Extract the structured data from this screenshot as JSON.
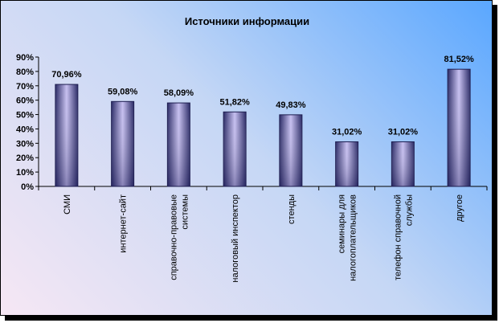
{
  "chart_data": {
    "type": "bar",
    "title": "Источники информации",
    "categories": [
      [
        "СМИ"
      ],
      [
        "интернет-сайт"
      ],
      [
        "справочно-правовые",
        "системы"
      ],
      [
        "налоговый инспектор"
      ],
      [
        "стенды"
      ],
      [
        "семинары для",
        "налогоплательщиков"
      ],
      [
        "телефон справочной",
        "службы"
      ],
      [
        "другое"
      ]
    ],
    "values": [
      70.96,
      59.08,
      58.09,
      51.82,
      49.83,
      31.02,
      31.02,
      81.52
    ],
    "data_labels": [
      "70,96%",
      "59,08%",
      "58,09%",
      "51,82%",
      "49,83%",
      "31,02%",
      "31,02%",
      "81,52%"
    ],
    "y_ticks": [
      "0%",
      "10%",
      "20%",
      "30%",
      "40%",
      "50%",
      "60%",
      "70%",
      "80%",
      "90%"
    ],
    "ylim": [
      0,
      90
    ],
    "grid": false,
    "legend": "none",
    "colors": {
      "bar_edge": "#2a2a66",
      "bar_center": "#c6bff0",
      "bar_dark": "#3a3680"
    }
  }
}
